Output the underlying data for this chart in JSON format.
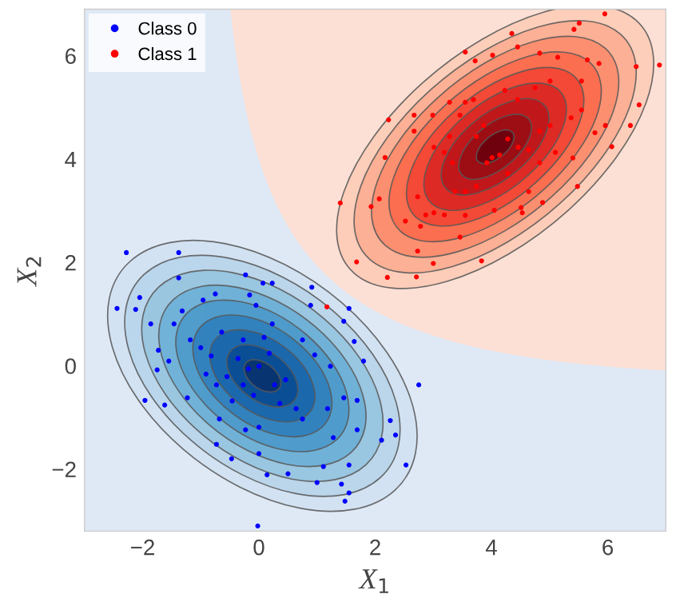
{
  "chart_data": {
    "type": "scatter",
    "xlabel": "X$_{1}$",
    "ylabel": "X$_{2}$",
    "xlim": [
      -3.0,
      7.0
    ],
    "ylim": [
      -3.2,
      6.9
    ],
    "xticks": [
      {
        "value": -2,
        "label": "−2"
      },
      0,
      2,
      4,
      6
    ],
    "yticks": [
      {
        "value": -2,
        "label": "−2"
      },
      0,
      2,
      4,
      6
    ],
    "grid": false,
    "legend": "top left",
    "marker": "circle",
    "series": [
      {
        "name": "Class 0",
        "color": "#0000ff",
        "x": [
          -2.28,
          -1.38,
          -2.44,
          -2.12,
          -2.05,
          -1.86,
          -1.96,
          -1.62,
          -1.75,
          -1.38,
          -0.23,
          0.07,
          0.23,
          0.91,
          0.89,
          1.55,
          1.46,
          1.64,
          1.8,
          2.75,
          2.26,
          2.35,
          2.11,
          2.53,
          1.42,
          1.55,
          1.48,
          1.0,
          0.5,
          0.14,
          -0.02,
          1.11,
          1.55,
          -0.73,
          -0.47,
          0.0,
          -0.23,
          -0.68,
          -1.23,
          -1.55,
          -1.73,
          -1.32,
          -1.46,
          -0.96,
          -0.75,
          -0.16,
          -0.05,
          0.23,
          0.75,
          0.96,
          1.23,
          1.18,
          1.46,
          1.69,
          1.69,
          1.28,
          0.75,
          0.64,
          0.36,
          0.0,
          0.0,
          -0.18,
          -0.36,
          -0.55,
          -0.73,
          -0.27,
          0.27,
          0.46,
          -0.82,
          -1.0,
          -1.18,
          -0.64,
          -0.27,
          0.09,
          0.18,
          -0.09,
          -0.46,
          -0.91
        ],
        "values": [
          2.19,
          2.19,
          1.11,
          1.09,
          1.32,
          0.81,
          -0.67,
          -0.76,
          -0.08,
          1.7,
          1.76,
          1.6,
          1.6,
          1.52,
          1.17,
          1.11,
          0.86,
          0.47,
          0.09,
          -0.37,
          -1.06,
          -1.34,
          -1.44,
          -1.92,
          -2.29,
          -2.46,
          -2.62,
          -2.26,
          -2.09,
          -2.11,
          -3.1,
          -1.95,
          -1.92,
          -1.52,
          -1.8,
          -1.7,
          -1.24,
          -1.03,
          -0.62,
          0.09,
          0.3,
          1.06,
          0.81,
          1.27,
          1.39,
          1.37,
          1.17,
          0.81,
          0.5,
          0.21,
          -0.01,
          -0.83,
          -0.62,
          -0.67,
          -1.24,
          -1.39,
          -1.03,
          -0.83,
          -0.73,
          -1.19,
          -0.01,
          -0.06,
          0.14,
          -0.21,
          -0.37,
          -0.37,
          -0.37,
          -0.27,
          0.19,
          0.35,
          0.5,
          0.65,
          0.5,
          0.55,
          0.24,
          -0.57,
          -0.68,
          -0.16
        ]
      },
      {
        "name": "Class 1",
        "color": "#ff0000",
        "x": [
          1.17,
          4.35,
          5.51,
          5.42,
          5.95,
          4.45,
          3.55,
          3.72,
          4.02,
          4.83,
          5.14,
          5.65,
          5.85,
          6.49,
          6.89,
          6.54,
          6.39,
          6.07,
          5.96,
          5.78,
          5.55,
          5.48,
          5.4,
          4.88,
          4.51,
          4.53,
          3.83,
          3.0,
          2.71,
          2.21,
          1.68,
          1.4,
          1.93,
          2.07,
          2.17,
          2.23,
          2.67,
          2.99,
          2.67,
          3.28,
          3.55,
          3.69,
          4.23,
          4.45,
          4.75,
          5.01,
          5.55,
          5.37,
          2.52,
          2.78,
          2.73,
          3.01,
          3.55,
          3.46,
          4.05,
          2.73,
          2.87,
          3.19,
          3.55,
          3.74,
          4.01,
          4.14,
          3.92,
          3.74,
          3.87,
          4.28,
          4.46,
          4.64,
          4.83,
          5.01,
          5.1,
          4.28,
          3.33,
          3.28,
          3.19,
          3.46,
          3.01,
          3.37,
          4.64,
          4.83
        ],
        "values": [
          1.14,
          6.43,
          6.63,
          6.51,
          6.81,
          6.17,
          6.07,
          5.9,
          6.01,
          6.05,
          5.97,
          5.92,
          5.85,
          5.79,
          5.82,
          5.05,
          4.65,
          4.24,
          4.65,
          4.51,
          5.51,
          3.47,
          4.02,
          3.16,
          3.06,
          2.96,
          2.03,
          1.98,
          1.72,
          1.71,
          2.01,
          3.15,
          3.08,
          3.23,
          4.03,
          4.76,
          4.85,
          4.85,
          4.54,
          5.1,
          5.1,
          5.15,
          5.33,
          5.15,
          5.38,
          5.51,
          4.95,
          4.8,
          2.8,
          2.7,
          2.22,
          2.96,
          2.91,
          2.49,
          3.01,
          3.27,
          2.92,
          2.92,
          3.37,
          3.47,
          4.03,
          4.08,
          3.93,
          4.44,
          4.65,
          4.39,
          4.23,
          4.18,
          4.54,
          4.65,
          4.13,
          3.72,
          3.93,
          4.44,
          4.13,
          4.85,
          4.23,
          3.37,
          3.37,
          3.93
        ]
      }
    ]
  }
}
